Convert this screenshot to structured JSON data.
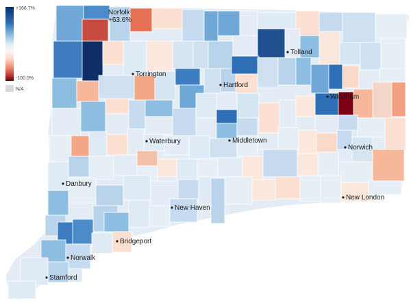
{
  "legend": {
    "max_label": "+166.7%",
    "min_label": "-100.0%",
    "na_label": "N/A",
    "scale_colors": [
      "#08306b",
      "#2e6fb5",
      "#8dbde0",
      "#deebf5",
      "#f7f7f7",
      "#fbd9c9",
      "#ef8a6c",
      "#c33a36",
      "#67000d"
    ],
    "na_color": "#d9d9d9"
  },
  "annotation": {
    "town": "Norfolk",
    "value": "+63.6%"
  },
  "cities": [
    {
      "name": "Tolland"
    },
    {
      "name": "Torrington"
    },
    {
      "name": "Hartford"
    },
    {
      "name": "Windham"
    },
    {
      "name": "Waterbury"
    },
    {
      "name": "Middletown"
    },
    {
      "name": "Norwich"
    },
    {
      "name": "Danbury"
    },
    {
      "name": "New Haven"
    },
    {
      "name": "New London"
    },
    {
      "name": "Bridgeport"
    },
    {
      "name": "Norwalk"
    },
    {
      "name": "Stamford"
    }
  ],
  "colors": {
    "state_fill": "#e3ecf4",
    "state_stroke": "#ffffff"
  }
}
